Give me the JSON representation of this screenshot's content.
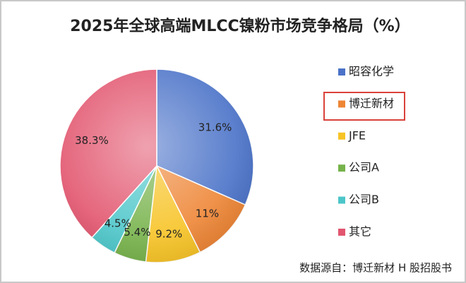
{
  "chart_data": {
    "type": "pie",
    "title": "2025年全球高端MLCC镍粉市场竞争格局（%）",
    "categories": [
      "昭容化学",
      "博迁新材",
      "JFE",
      "公司A",
      "公司B",
      "其它"
    ],
    "values": [
      31.6,
      11,
      9.2,
      5.4,
      4.5,
      38.3
    ],
    "value_labels": [
      "31.6%",
      "11%",
      "9.2%",
      "5.4%",
      "4.5%",
      "38.3%"
    ],
    "colors": [
      "#4a72c8",
      "#ee8535",
      "#f7c325",
      "#76b24a",
      "#4cc6c9",
      "#e2556e"
    ],
    "legend": "right",
    "source": "数据源自：博迁新材 H 股招股书"
  }
}
